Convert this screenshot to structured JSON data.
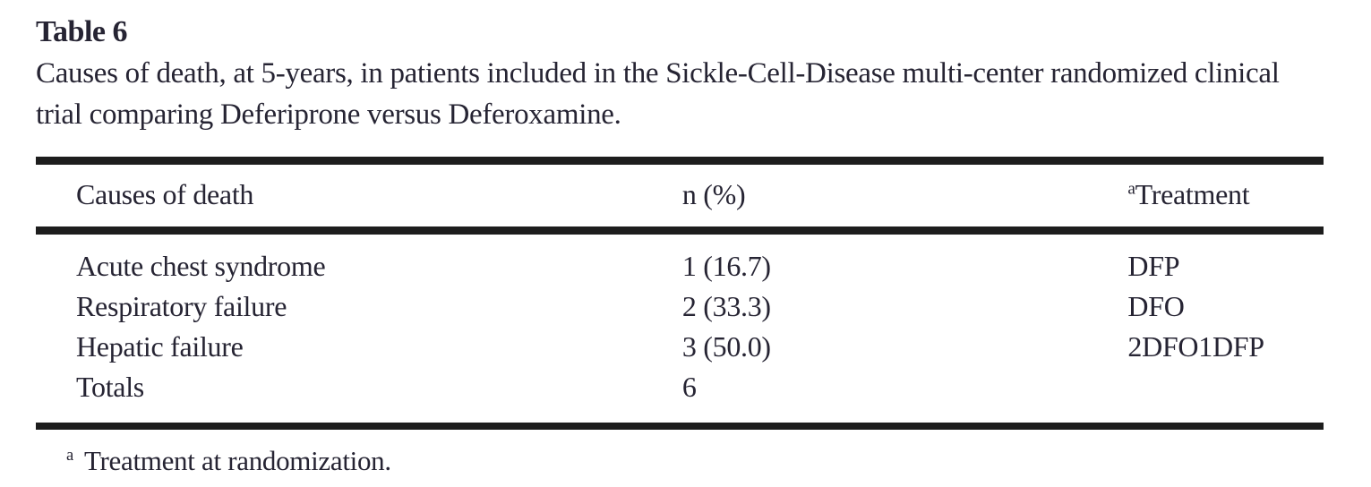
{
  "table_label": "Table 6",
  "caption": "Causes of death, at 5-years, in patients included in the Sickle-Cell-Disease multi-center randomized clinical trial comparing Deferiprone versus Deferoxamine.",
  "table": {
    "columns": [
      "Causes of death",
      "n (%)",
      "Treatment"
    ],
    "rows": [
      {
        "cause": "Acute chest syndrome",
        "n_pct": "1 (16.7)",
        "treatment": "DFP"
      },
      {
        "cause": "Respiratory failure",
        "n_pct": "2 (33.3)",
        "treatment": "DFO"
      },
      {
        "cause": "Hepatic failure",
        "n_pct": "3 (50.0)",
        "treatment": "2DFO1DFP"
      },
      {
        "cause": "Totals",
        "n_pct": "6",
        "treatment": ""
      }
    ]
  },
  "footnote": {
    "marker": "a",
    "text": "Treatment at randomization."
  },
  "colors": {
    "text": "#262433",
    "rule": "#1d1d1d",
    "background": "#ffffff"
  }
}
